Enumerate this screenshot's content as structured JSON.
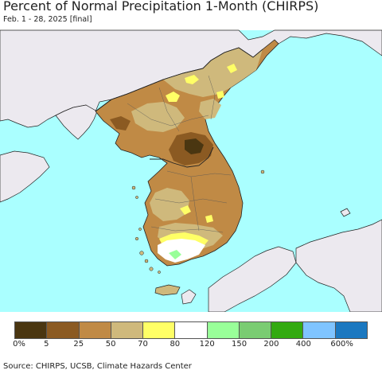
{
  "title": "Percent of Normal Precipitation 1-Month (CHIRPS)",
  "subtitle": "Feb. 1 - 28, 2025 [final]",
  "legend": {
    "colors": [
      "#4a3611",
      "#8b5a22",
      "#c08a45",
      "#cfb97c",
      "#ffff66",
      "#ffffff",
      "#99ff99",
      "#7acc72",
      "#33aa11",
      "#7fc4ff",
      "#1b78c0"
    ],
    "tick_labels": [
      "0%",
      "5",
      "25",
      "50",
      "70",
      "80",
      "120",
      "150",
      "200",
      "400",
      "600%"
    ]
  },
  "source": "Source: CHIRPS, UCSB, Climate Hazards Center",
  "map": {
    "sea_color": "#aaffff",
    "land_color": "#ece9ef",
    "masked_regions": [
      "China",
      "Russia",
      "Japan"
    ],
    "analysis_regions": [
      "North Korea",
      "South Korea"
    ]
  }
}
